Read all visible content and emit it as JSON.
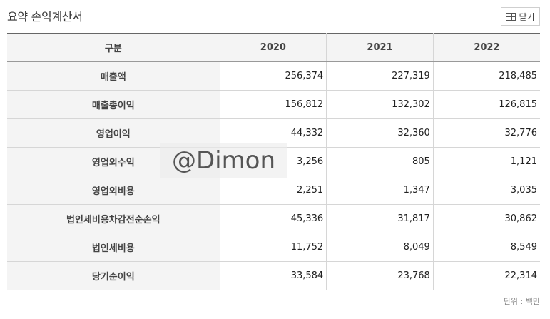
{
  "header": {
    "title": "요약 손익계산서",
    "close_label": "닫기"
  },
  "table": {
    "columns": [
      "구분",
      "2020",
      "2021",
      "2022"
    ],
    "rows": [
      {
        "label": "매출액",
        "values": [
          "256,374",
          "227,319",
          "218,485"
        ]
      },
      {
        "label": "매출총이익",
        "values": [
          "156,812",
          "132,302",
          "126,815"
        ]
      },
      {
        "label": "영업이익",
        "values": [
          "44,332",
          "32,360",
          "32,776"
        ]
      },
      {
        "label": "영업외수익",
        "values": [
          "3,256",
          "805",
          "1,121"
        ]
      },
      {
        "label": "영업외비용",
        "values": [
          "2,251",
          "1,347",
          "3,035"
        ]
      },
      {
        "label": "법인세비용차감전순손익",
        "values": [
          "45,336",
          "31,817",
          "30,862"
        ]
      },
      {
        "label": "법인세비용",
        "values": [
          "11,752",
          "8,049",
          "8,549"
        ]
      },
      {
        "label": "당기순이익",
        "values": [
          "33,584",
          "23,768",
          "22,314"
        ]
      }
    ]
  },
  "watermark": "@Dimon",
  "unit_label": "단위 : 백만"
}
